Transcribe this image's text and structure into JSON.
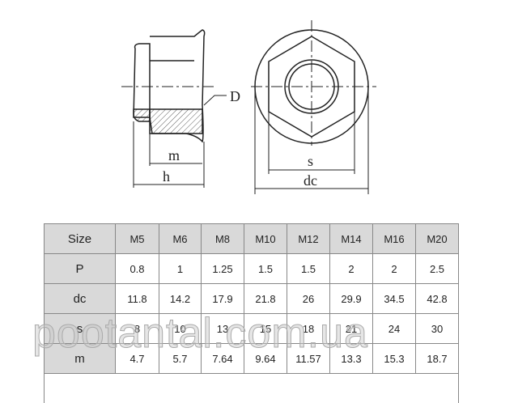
{
  "drawing": {
    "labels": {
      "D": "D",
      "m": "m",
      "h": "h",
      "s": "s",
      "dc": "dc"
    }
  },
  "table": {
    "header": [
      "Size",
      "M5",
      "M6",
      "M8",
      "M10",
      "M12",
      "M14",
      "M16",
      "M20"
    ],
    "rows": [
      [
        "P",
        "0.8",
        "1",
        "1.25",
        "1.5",
        "1.5",
        "2",
        "2",
        "2.5"
      ],
      [
        "dc",
        "11.8",
        "14.2",
        "17.9",
        "21.8",
        "26",
        "29.9",
        "34.5",
        "42.8"
      ],
      [
        "s",
        "8",
        "10",
        "13",
        "15",
        "18",
        "21",
        "24",
        "30"
      ],
      [
        "m",
        "4.7",
        "5.7",
        "7.64",
        "9.64",
        "11.57",
        "13.3",
        "15.3",
        "18.7"
      ]
    ]
  },
  "watermark": "pootantal.com.ua"
}
